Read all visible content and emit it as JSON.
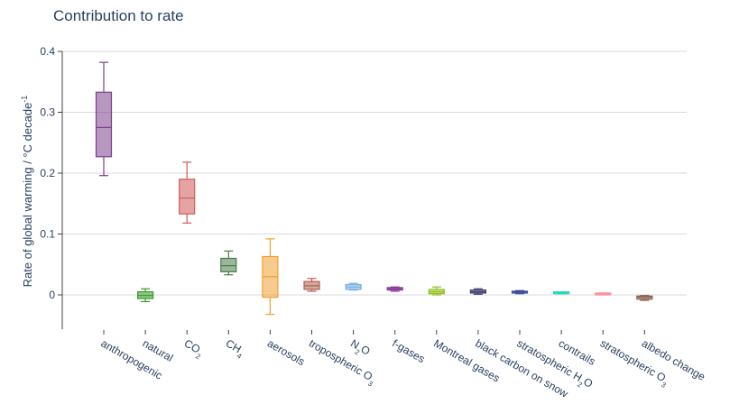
{
  "chart_data": {
    "type": "box",
    "title": "Contribution to rate",
    "ylabel": "Rate of global warming / °C decade⁻¹",
    "xlabel": "",
    "ylim": [
      -0.055,
      0.41
    ],
    "yticks": [
      0,
      0.1,
      0.2,
      0.3,
      0.4
    ],
    "ytick_labels": [
      "0",
      "0.1",
      "0.2",
      "0.3",
      "0.4"
    ],
    "grid": "horizontal",
    "categories": [
      {
        "label": "anthropogenic",
        "sub": ""
      },
      {
        "label": "natural",
        "sub": ""
      },
      {
        "label": "CO",
        "sub": "2"
      },
      {
        "label": "CH",
        "sub": "4"
      },
      {
        "label": "aerosols",
        "sub": ""
      },
      {
        "label": "tropospheric O",
        "sub": "3"
      },
      {
        "label": "N",
        "sub": "2",
        "tail": "O"
      },
      {
        "label": "f-gases",
        "sub": ""
      },
      {
        "label": "Montreal gases",
        "sub": ""
      },
      {
        "label": "black carbon on snow",
        "sub": ""
      },
      {
        "label": "stratospheric H",
        "sub": "2",
        "tail": "O"
      },
      {
        "label": "contrails",
        "sub": ""
      },
      {
        "label": "stratospheric O",
        "sub": "3"
      },
      {
        "label": "albedo change",
        "sub": ""
      }
    ],
    "boxes": [
      {
        "min": 0.196,
        "q1": 0.227,
        "median": 0.275,
        "q3": 0.333,
        "max": 0.382,
        "color": "#7b3f8c"
      },
      {
        "min": -0.011,
        "q1": -0.006,
        "median": -0.001,
        "q3": 0.005,
        "max": 0.01,
        "color": "#3a9a2a"
      },
      {
        "min": 0.118,
        "q1": 0.133,
        "median": 0.159,
        "q3": 0.19,
        "max": 0.218,
        "color": "#d05a5a"
      },
      {
        "min": 0.033,
        "q1": 0.038,
        "median": 0.048,
        "q3": 0.06,
        "max": 0.072,
        "color": "#4a7a4a"
      },
      {
        "min": -0.032,
        "q1": -0.004,
        "median": 0.03,
        "q3": 0.063,
        "max": 0.092,
        "color": "#f0a030"
      },
      {
        "min": 0.006,
        "q1": 0.009,
        "median": 0.015,
        "q3": 0.022,
        "max": 0.027,
        "color": "#b06050"
      },
      {
        "min": 0.008,
        "q1": 0.009,
        "median": 0.013,
        "q3": 0.017,
        "max": 0.019,
        "color": "#7ab0e0"
      },
      {
        "min": 0.006,
        "q1": 0.008,
        "median": 0.01,
        "q3": 0.012,
        "max": 0.013,
        "color": "#8a3a9a"
      },
      {
        "min": 0.0,
        "q1": 0.002,
        "median": 0.005,
        "q3": 0.009,
        "max": 0.013,
        "color": "#90c020"
      },
      {
        "min": 0.001,
        "q1": 0.003,
        "median": 0.005,
        "q3": 0.008,
        "max": 0.01,
        "color": "#404070"
      },
      {
        "min": 0.002,
        "q1": 0.003,
        "median": 0.005,
        "q3": 0.006,
        "max": 0.007,
        "color": "#3a4a9a"
      },
      {
        "min": 0.002,
        "q1": 0.003,
        "median": 0.004,
        "q3": 0.005,
        "max": 0.005,
        "color": "#20d8c0"
      },
      {
        "min": 0.0,
        "q1": 0.001,
        "median": 0.002,
        "q3": 0.003,
        "max": 0.003,
        "color": "#ff8aa0"
      },
      {
        "min": -0.009,
        "q1": -0.007,
        "median": -0.004,
        "q3": -0.002,
        "max": -0.001,
        "color": "#906050"
      }
    ]
  }
}
